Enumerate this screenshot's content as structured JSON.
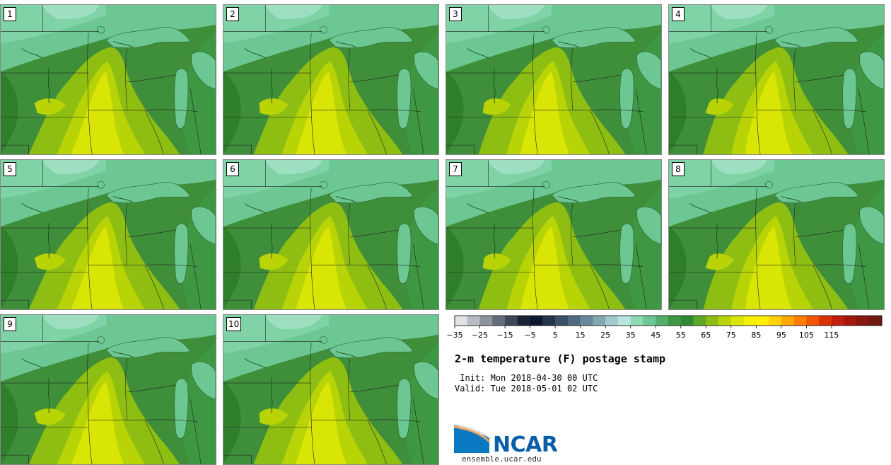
{
  "panels": [
    {
      "label": "1"
    },
    {
      "label": "2"
    },
    {
      "label": "3"
    },
    {
      "label": "4"
    },
    {
      "label": "5"
    },
    {
      "label": "6"
    },
    {
      "label": "7"
    },
    {
      "label": "8"
    },
    {
      "label": "9"
    },
    {
      "label": "10"
    }
  ],
  "colorbar": {
    "colors": [
      "#dfe3e8",
      "#b7bcc4",
      "#8d939d",
      "#656c79",
      "#3f4757",
      "#1b2437",
      "#0c1730",
      "#25344b",
      "#3a5066",
      "#4f6b80",
      "#66889a",
      "#83a8b3",
      "#a1cbcd",
      "#b6e6dc",
      "#8ed8b6",
      "#6cc792",
      "#53ad6c",
      "#3e9742",
      "#2e8a30",
      "#5ea626",
      "#8fbe13",
      "#b8d407",
      "#d9e605",
      "#f4f000",
      "#fff000",
      "#ffd200",
      "#ffa800",
      "#ff7e00",
      "#f25500",
      "#d93000",
      "#c01f0c",
      "#a4170e",
      "#881710",
      "#6e1a12"
    ],
    "tick_labels": [
      "−35",
      "−25",
      "−15",
      "−5",
      "5",
      "15",
      "25",
      "35",
      "45",
      "55",
      "65",
      "75",
      "85",
      "95",
      "105",
      "115"
    ]
  },
  "title": "2-m temperature (F) postage stamp",
  "init": " Init: Mon 2018-04-30 00 UTC",
  "valid": "Valid: Tue 2018-05-01 02 UTC",
  "logo": {
    "text": "NCAR",
    "website": "ensemble.ucar.edu"
  }
}
